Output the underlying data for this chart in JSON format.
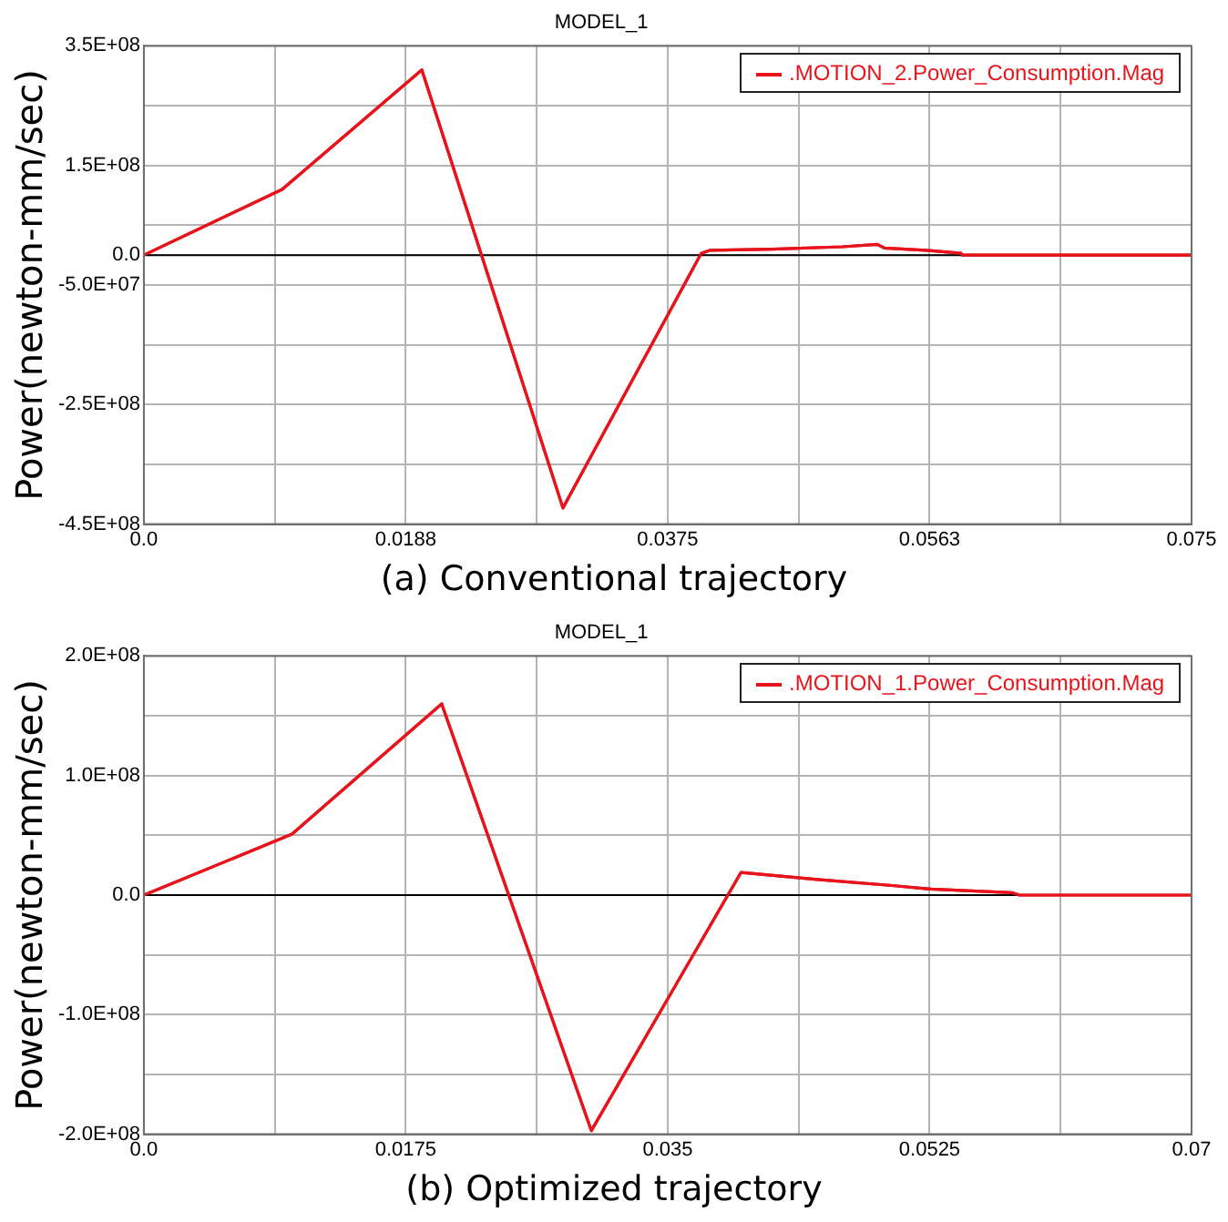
{
  "chart_data": [
    {
      "type": "line",
      "title": "MODEL_1",
      "ylabel": "Power(newton-mm/sec)",
      "annotations": [
        "(a) Conventional trajectory"
      ],
      "xlim": [
        0,
        0.075
      ],
      "xticks": [
        {
          "value": 0,
          "label": "0.0"
        },
        {
          "value": 0.009375,
          "label": null
        },
        {
          "value": 0.01875,
          "label": "0.0188"
        },
        {
          "value": 0.028125,
          "label": null
        },
        0.0375,
        {
          "value": 0.046875,
          "label": null
        },
        {
          "value": 0.05625,
          "label": "0.0563"
        },
        {
          "value": 0.065625,
          "label": null
        },
        0.075
      ],
      "ylim": [
        -450000000,
        350000000
      ],
      "yticks": [
        {
          "value": 350000000,
          "label": "3.5E+08"
        },
        {
          "value": 250000000,
          "label": null
        },
        {
          "value": 150000000,
          "label": "1.5E+08"
        },
        {
          "value": 50000000,
          "label": null
        },
        {
          "value": 0,
          "label": "0.0"
        },
        {
          "value": -50000000,
          "label": "-5.0E+07"
        },
        {
          "value": -150000000,
          "label": null
        },
        {
          "value": -250000000,
          "label": "-2.5E+08"
        },
        {
          "value": -350000000,
          "label": null
        },
        {
          "value": -450000000,
          "label": "-4.5E+08"
        }
      ],
      "grid": true,
      "legend": "top right",
      "marker": "none",
      "line_style": "solid",
      "ref_lines": [
        {
          "axis": "y",
          "value": 0,
          "color": "#000000"
        }
      ],
      "series": [
        {
          "name": ".MOTION_2.Power_Consumption.Mag",
          "color": "#e8141c",
          "x": [
            0,
            0.0099,
            0.0199,
            0.03,
            0.0399,
            0.0405,
            0.045,
            0.05,
            0.0525,
            0.053,
            0.056,
            0.0585,
            0.0586,
            0.075
          ],
          "values": [
            0,
            110000000,
            310000000,
            -423000000,
            3000000,
            8000000,
            10000000,
            14000000,
            18000000,
            12000000,
            8000000,
            3000000,
            0,
            0
          ]
        }
      ]
    },
    {
      "type": "line",
      "title": "MODEL_1",
      "ylabel": "Power(newton-mm/sec)",
      "annotations": [
        "(b) Optimized trajectory"
      ],
      "xlim": [
        0,
        0.07
      ],
      "xticks": [
        {
          "value": 0,
          "label": "0.0"
        },
        {
          "value": 0.00875,
          "label": null
        },
        0.0175,
        {
          "value": 0.02625,
          "label": null
        },
        0.035,
        {
          "value": 0.04375,
          "label": null
        },
        0.0525,
        {
          "value": 0.06125,
          "label": null
        },
        0.07
      ],
      "ylim": [
        -200000000,
        200000000
      ],
      "yticks": [
        {
          "value": 200000000,
          "label": "2.0E+08"
        },
        {
          "value": 150000000,
          "label": null
        },
        {
          "value": 100000000,
          "label": "1.0E+08"
        },
        {
          "value": 50000000,
          "label": null
        },
        {
          "value": 0,
          "label": "0.0"
        },
        {
          "value": -50000000,
          "label": null
        },
        {
          "value": -100000000,
          "label": "-1.0E+08"
        },
        {
          "value": -150000000,
          "label": null
        },
        {
          "value": -200000000,
          "label": "-2.0E+08"
        }
      ],
      "grid": true,
      "legend": "top right",
      "marker": "none",
      "line_style": "solid",
      "ref_lines": [
        {
          "axis": "y",
          "value": 0,
          "color": "#000000"
        }
      ],
      "series": [
        {
          "name": ".MOTION_1.Power_Consumption.Mag",
          "color": "#e8141c",
          "x": [
            0,
            0.0099,
            0.0199,
            0.0299,
            0.0399,
            0.045,
            0.05,
            0.0526,
            0.058,
            0.0585,
            0.07
          ],
          "values": [
            0,
            51000000,
            160000000,
            -197000000,
            19000000,
            13000000,
            8000000,
            5000000,
            2000000,
            0,
            0
          ]
        }
      ]
    }
  ]
}
